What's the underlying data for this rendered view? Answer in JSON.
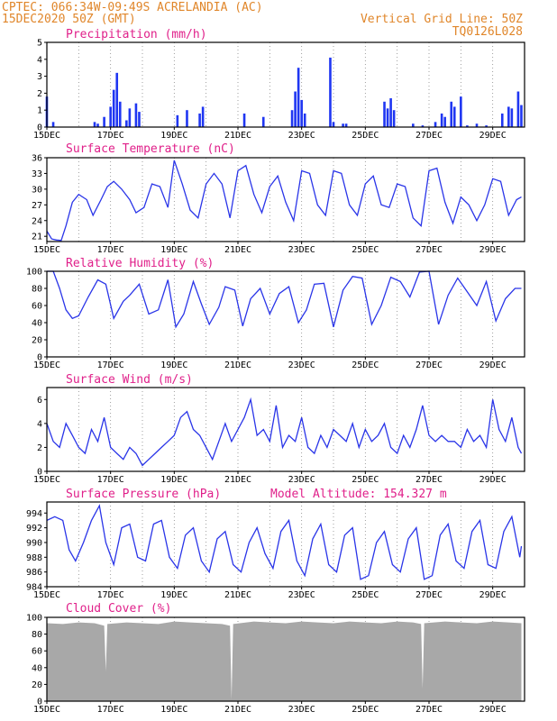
{
  "header": {
    "line1": "CPTEC:   066:34W-09:49S   ACRELANDIA (AC)",
    "line2": "15DEC2020 50Z (GMT)",
    "grid_note": "Vertical Grid Line: 50Z",
    "model_code": "TQ0126L028"
  },
  "colors": {
    "line": "#2a35e8",
    "bar": "#1f36f2",
    "cloud": "#a8a8a8",
    "header": "#e0862a",
    "title": "#e0208a",
    "grid": "#888888"
  },
  "chart_data": [
    {
      "type": "bar",
      "title": "Precipitation (mm/h)",
      "ylim": [
        0,
        5
      ],
      "yticks": [
        0,
        1,
        2,
        3,
        4,
        5
      ],
      "x_tick_labels": [
        "15DEC",
        "17DEC",
        "19DEC",
        "21DEC",
        "23DEC",
        "25DEC",
        "27DEC",
        "29DEC"
      ],
      "x": [
        15.0,
        15.2,
        16.5,
        16.6,
        16.8,
        17.0,
        17.1,
        17.2,
        17.3,
        17.5,
        17.6,
        17.8,
        17.9,
        19.1,
        19.4,
        19.8,
        19.9,
        21.2,
        21.8,
        22.7,
        22.8,
        22.9,
        23.0,
        23.1,
        23.9,
        24.0,
        24.3,
        24.4,
        25.6,
        25.7,
        25.8,
        25.9,
        26.5,
        26.8,
        27.2,
        27.4,
        27.5,
        27.7,
        27.8,
        28.0,
        28.2,
        28.5,
        28.8,
        29.3,
        29.5,
        29.6,
        29.8,
        29.9
      ],
      "values": [
        1.8,
        0.3,
        0.3,
        0.2,
        0.6,
        1.2,
        2.2,
        3.2,
        1.5,
        0.4,
        1.1,
        1.4,
        0.9,
        0.7,
        1.0,
        0.8,
        1.2,
        0.8,
        0.6,
        1.0,
        2.1,
        3.5,
        1.6,
        0.8,
        4.1,
        0.3,
        0.2,
        0.2,
        1.5,
        1.1,
        1.7,
        1.0,
        0.2,
        0.1,
        0.3,
        0.8,
        0.6,
        1.5,
        1.2,
        1.8,
        0.1,
        0.2,
        0.1,
        0.8,
        1.2,
        1.1,
        2.1,
        1.3
      ]
    },
    {
      "type": "line",
      "title": "Surface Temperature (nC)",
      "ylim": [
        20,
        36
      ],
      "yticks": [
        21,
        24,
        27,
        30,
        33,
        36
      ],
      "x_tick_labels": [
        "15DEC",
        "17DEC",
        "19DEC",
        "21DEC",
        "23DEC",
        "25DEC",
        "27DEC",
        "29DEC"
      ],
      "x": [
        15.0,
        15.15,
        15.3,
        15.45,
        15.6,
        15.8,
        16.0,
        16.25,
        16.45,
        16.7,
        16.9,
        17.1,
        17.35,
        17.6,
        17.8,
        18.05,
        18.3,
        18.55,
        18.8,
        19.0,
        19.25,
        19.5,
        19.75,
        20.0,
        20.25,
        20.5,
        20.75,
        21.0,
        21.25,
        21.5,
        21.75,
        22.0,
        22.25,
        22.5,
        22.75,
        23.0,
        23.25,
        23.5,
        23.75,
        24.0,
        24.25,
        24.5,
        24.75,
        25.0,
        25.25,
        25.5,
        25.75,
        26.0,
        26.25,
        26.5,
        26.75,
        27.0,
        27.25,
        27.5,
        27.75,
        28.0,
        28.25,
        28.5,
        28.75,
        29.0,
        29.25,
        29.5,
        29.75,
        29.9
      ],
      "values": [
        22.0,
        20.5,
        20.3,
        20.2,
        23.0,
        27.5,
        29.0,
        28.0,
        25.0,
        28.0,
        30.5,
        31.5,
        30.0,
        28.0,
        25.5,
        26.5,
        31.0,
        30.5,
        26.5,
        35.5,
        31.0,
        26.0,
        24.5,
        31.0,
        33.0,
        31.0,
        24.5,
        33.5,
        34.5,
        29.0,
        25.5,
        30.5,
        32.5,
        27.5,
        24.0,
        33.5,
        33.0,
        27.0,
        25.0,
        33.5,
        33.0,
        27.0,
        25.0,
        31.0,
        32.5,
        27.0,
        26.5,
        31.0,
        30.5,
        24.5,
        23.0,
        33.5,
        34.0,
        27.5,
        23.5,
        28.5,
        27.0,
        24.0,
        27.0,
        32.0,
        31.5,
        25.0,
        28.0,
        28.5
      ]
    },
    {
      "type": "line",
      "title": "Relative Humidity (%)",
      "ylim": [
        0,
        100
      ],
      "yticks": [
        0,
        20,
        40,
        60,
        80,
        100
      ],
      "x_tick_labels": [
        "15DEC",
        "17DEC",
        "19DEC",
        "21DEC",
        "23DEC",
        "25DEC",
        "27DEC",
        "29DEC"
      ],
      "x": [
        15.0,
        15.2,
        15.4,
        15.6,
        15.8,
        16.0,
        16.3,
        16.6,
        16.85,
        17.1,
        17.4,
        17.6,
        17.9,
        18.2,
        18.5,
        18.8,
        19.05,
        19.3,
        19.6,
        19.85,
        20.1,
        20.4,
        20.6,
        20.9,
        21.15,
        21.4,
        21.7,
        22.0,
        22.3,
        22.6,
        22.9,
        23.15,
        23.4,
        23.7,
        24.0,
        24.3,
        24.6,
        24.9,
        25.2,
        25.5,
        25.8,
        26.1,
        26.4,
        26.7,
        27.0,
        27.3,
        27.6,
        27.9,
        28.2,
        28.5,
        28.8,
        29.1,
        29.4,
        29.7,
        29.9
      ],
      "values": [
        100,
        100,
        80,
        55,
        45,
        48,
        70,
        90,
        85,
        45,
        65,
        72,
        85,
        50,
        55,
        90,
        35,
        50,
        88,
        62,
        38,
        58,
        82,
        78,
        36,
        68,
        80,
        50,
        74,
        82,
        40,
        55,
        85,
        86,
        35,
        78,
        94,
        92,
        38,
        60,
        93,
        88,
        70,
        99,
        100,
        38,
        72,
        92,
        76,
        60,
        88,
        42,
        68,
        80,
        80
      ]
    },
    {
      "type": "line",
      "title": "Surface Wind (m/s)",
      "ylim": [
        0,
        7
      ],
      "yticks": [
        0,
        2,
        4,
        6
      ],
      "x_tick_labels": [
        "15DEC",
        "17DEC",
        "19DEC",
        "21DEC",
        "23DEC",
        "25DEC",
        "27DEC",
        "29DEC"
      ],
      "x": [
        15.0,
        15.2,
        15.4,
        15.6,
        15.8,
        16.0,
        16.2,
        16.4,
        16.6,
        16.8,
        17.0,
        17.2,
        17.4,
        17.6,
        17.8,
        18.0,
        18.2,
        18.4,
        18.6,
        18.8,
        19.0,
        19.2,
        19.4,
        19.6,
        19.8,
        20.0,
        20.2,
        20.4,
        20.6,
        20.8,
        21.0,
        21.2,
        21.4,
        21.6,
        21.8,
        22.0,
        22.2,
        22.4,
        22.6,
        22.8,
        23.0,
        23.2,
        23.4,
        23.6,
        23.8,
        24.0,
        24.2,
        24.4,
        24.6,
        24.8,
        25.0,
        25.2,
        25.4,
        25.6,
        25.8,
        26.0,
        26.2,
        26.4,
        26.6,
        26.8,
        27.0,
        27.2,
        27.4,
        27.6,
        27.8,
        28.0,
        28.2,
        28.4,
        28.6,
        28.8,
        29.0,
        29.2,
        29.4,
        29.6,
        29.8,
        29.9
      ],
      "values": [
        4.0,
        2.5,
        2.0,
        4.0,
        3.0,
        2.0,
        1.5,
        3.5,
        2.5,
        4.5,
        2.0,
        1.5,
        1.0,
        2.0,
        1.5,
        0.5,
        1.0,
        1.5,
        2.0,
        2.5,
        3.0,
        4.5,
        5.0,
        3.5,
        3.0,
        2.0,
        1.0,
        2.5,
        4.0,
        2.5,
        3.5,
        4.5,
        6.0,
        3.0,
        3.5,
        2.5,
        5.5,
        2.0,
        3.0,
        2.5,
        4.5,
        2.0,
        1.5,
        3.0,
        2.0,
        3.5,
        3.0,
        2.5,
        4.0,
        2.0,
        3.5,
        2.5,
        3.0,
        4.0,
        2.0,
        1.5,
        3.0,
        2.0,
        3.5,
        5.5,
        3.0,
        2.5,
        3.0,
        2.5,
        2.5,
        2.0,
        3.5,
        2.5,
        3.0,
        2.0,
        6.0,
        3.5,
        2.5,
        4.5,
        2.0,
        1.5
      ]
    },
    {
      "type": "line",
      "title": "Surface Pressure (hPa)",
      "annotation": "Model Altitude: 154.327 m",
      "ylim": [
        984,
        995.5
      ],
      "yticks": [
        984,
        986,
        988,
        990,
        992,
        994
      ],
      "x_tick_labels": [
        "15DEC",
        "17DEC",
        "19DEC",
        "21DEC",
        "23DEC",
        "25DEC",
        "27DEC",
        "29DEC"
      ],
      "x": [
        15.0,
        15.25,
        15.5,
        15.7,
        15.9,
        16.15,
        16.4,
        16.65,
        16.85,
        17.1,
        17.35,
        17.6,
        17.85,
        18.1,
        18.35,
        18.6,
        18.85,
        19.1,
        19.35,
        19.6,
        19.85,
        20.1,
        20.35,
        20.6,
        20.85,
        21.1,
        21.35,
        21.6,
        21.85,
        22.1,
        22.35,
        22.6,
        22.85,
        23.1,
        23.35,
        23.6,
        23.85,
        24.1,
        24.35,
        24.6,
        24.85,
        25.1,
        25.35,
        25.6,
        25.85,
        26.1,
        26.35,
        26.6,
        26.85,
        27.1,
        27.35,
        27.6,
        27.85,
        28.1,
        28.35,
        28.6,
        28.85,
        29.1,
        29.35,
        29.6,
        29.85,
        29.9
      ],
      "values": [
        993.0,
        993.5,
        993.0,
        989.0,
        987.5,
        990.0,
        993.0,
        995.0,
        990.0,
        987.0,
        992.0,
        992.5,
        988.0,
        987.5,
        992.5,
        993.0,
        988.0,
        986.5,
        991.0,
        992.0,
        987.5,
        986.0,
        990.5,
        991.5,
        987.0,
        986.0,
        990.0,
        992.0,
        988.5,
        986.5,
        991.5,
        993.0,
        987.5,
        985.5,
        990.5,
        992.5,
        987.0,
        986.0,
        991.0,
        992.0,
        985.0,
        985.5,
        990.0,
        991.5,
        987.0,
        986.0,
        990.5,
        992.0,
        985.0,
        985.5,
        991.0,
        992.5,
        987.5,
        986.5,
        991.5,
        993.0,
        987.0,
        986.5,
        991.5,
        993.5,
        988.0,
        989.5
      ]
    },
    {
      "type": "area",
      "title": "Cloud Cover (%)",
      "ylim": [
        0,
        100
      ],
      "yticks": [
        0,
        20,
        40,
        60,
        80,
        100
      ],
      "x_tick_labels": [
        "15DEC",
        "17DEC",
        "19DEC",
        "21DEC",
        "23DEC",
        "25DEC",
        "27DEC",
        "29DEC"
      ],
      "x": [
        15.0,
        15.5,
        16.0,
        16.5,
        16.8,
        16.85,
        16.9,
        17.5,
        18.0,
        18.5,
        19.0,
        19.5,
        20.0,
        20.5,
        20.75,
        20.8,
        20.85,
        21.5,
        22.0,
        22.5,
        23.0,
        23.5,
        24.0,
        24.5,
        25.0,
        25.5,
        26.0,
        26.5,
        26.75,
        26.8,
        26.85,
        27.5,
        28.0,
        28.5,
        29.0,
        29.5,
        29.9
      ],
      "values": [
        93,
        92,
        94,
        93,
        90,
        36,
        92,
        94,
        93,
        92,
        95,
        94,
        93,
        92,
        90,
        2,
        92,
        95,
        94,
        93,
        95,
        94,
        93,
        95,
        94,
        93,
        95,
        94,
        92,
        15,
        93,
        95,
        94,
        93,
        95,
        94,
        93
      ]
    }
  ]
}
